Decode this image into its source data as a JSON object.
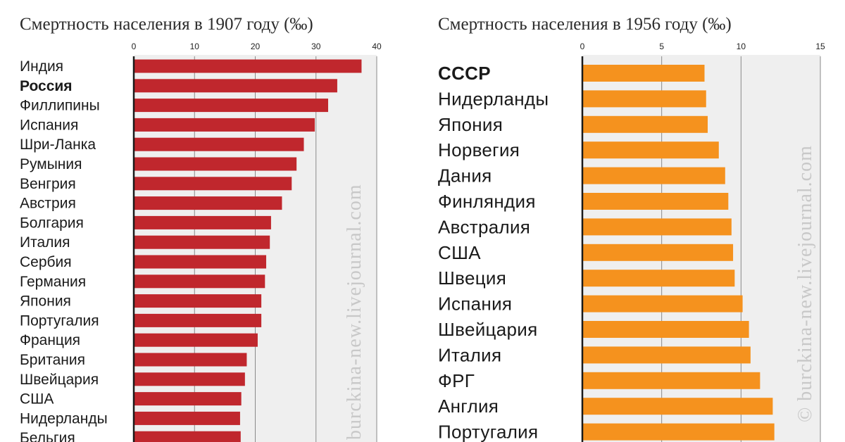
{
  "chart_data": [
    {
      "type": "bar",
      "orientation": "horizontal",
      "title": "Смертность населения в 1907 году (‰)",
      "xlim": [
        0,
        40
      ],
      "ticks": [
        0,
        10,
        20,
        30,
        40
      ],
      "bar_color": "#c0272d",
      "highlight": [
        "Россия"
      ],
      "categories": [
        "Индия",
        "Россия",
        "Филлипины",
        "Испания",
        "Шри-Ланка",
        "Румыния",
        "Венгрия",
        "Австрия",
        "Болгария",
        "Италия",
        "Сербия",
        "Германия",
        "Япония",
        "Португалия",
        "Франция",
        "Британия",
        "Швейцария",
        "США",
        "Нидерланды",
        "Бельгия"
      ],
      "values": [
        37.5,
        33.5,
        32.0,
        29.8,
        28.0,
        26.8,
        26.0,
        24.4,
        22.6,
        22.4,
        21.8,
        21.6,
        21.0,
        21.0,
        20.4,
        18.6,
        18.3,
        17.7,
        17.5,
        17.6
      ],
      "watermark": "burckina-new.livejournal.com"
    },
    {
      "type": "bar",
      "orientation": "horizontal",
      "title": "Смертность населения в 1956 году (‰)",
      "xlim": [
        0,
        15
      ],
      "ticks": [
        0,
        5,
        10,
        15
      ],
      "bar_color": "#f5921e",
      "highlight": [
        "СССР"
      ],
      "categories": [
        "СССР",
        "Нидерланды",
        "Япония",
        "Норвегия",
        "Дания",
        "Финляндия",
        "Австралия",
        "США",
        "Швеция",
        "Испания",
        "Швейцария",
        "Италия",
        "ФРГ",
        "Англия",
        "Португалия"
      ],
      "values": [
        7.7,
        7.8,
        7.9,
        8.6,
        9.0,
        9.2,
        9.4,
        9.5,
        9.6,
        10.1,
        10.5,
        10.6,
        11.2,
        12.0,
        12.1
      ],
      "watermark": "© burckina-new.livejournal.com"
    }
  ]
}
